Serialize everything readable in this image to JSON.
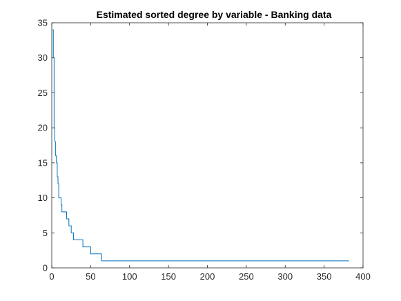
{
  "chart_data": {
    "type": "line",
    "title": "Estimated sorted degree by variable - Banking data",
    "xlabel": "",
    "ylabel": "",
    "xlim": [
      0,
      400
    ],
    "ylim": [
      0,
      35
    ],
    "xticks": [
      "0",
      "50",
      "100",
      "150",
      "200",
      "250",
      "300",
      "350",
      "400"
    ],
    "yticks": [
      "0",
      "5",
      "10",
      "15",
      "20",
      "25",
      "30",
      "35"
    ],
    "grid": false,
    "legend": "none",
    "series": [
      {
        "color": "#0072BD",
        "step": true,
        "x": [
          1,
          2,
          3,
          4,
          5,
          6,
          7,
          8,
          9,
          10,
          11,
          12,
          13,
          14,
          16,
          18,
          19,
          20,
          21,
          22,
          23,
          25,
          26,
          27,
          28,
          30,
          32,
          35,
          38,
          40,
          42,
          45,
          47,
          50,
          55,
          60,
          63,
          64,
          70,
          100,
          150,
          200,
          250,
          300,
          350,
          382
        ],
        "y": [
          34,
          30,
          20,
          18,
          16,
          15,
          13,
          12,
          10,
          10,
          10,
          9,
          8,
          8,
          8,
          8,
          7,
          7,
          7,
          6,
          6,
          5,
          5,
          5,
          4,
          4,
          4,
          4,
          4,
          3,
          3,
          3,
          3,
          2,
          2,
          2,
          2,
          1,
          1,
          1,
          1,
          1,
          1,
          1,
          1,
          1
        ]
      }
    ]
  }
}
